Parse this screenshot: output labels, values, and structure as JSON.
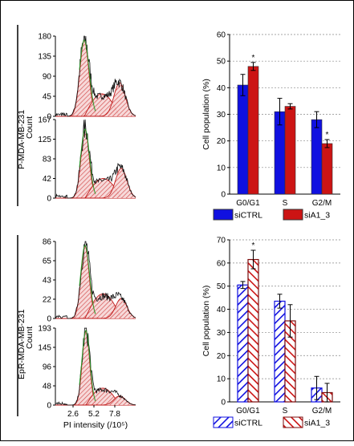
{
  "colors": {
    "siCTRL": "#1010e0",
    "siA1_3": "#cc1414",
    "hist_line": "#111111",
    "fit_fill": "#e8a0a0",
    "fit_line": "#c01818",
    "fit_green": "#2a9a2a"
  },
  "row_labels": [
    "P-MDA-MB-231",
    "EpR-MDA-MB-231"
  ],
  "histograms": {
    "ylabel": "Count",
    "xlabel": "PI intensity (/10⁵)",
    "x_ticks": [
      "2.6",
      "5.2",
      "7.8"
    ],
    "panels": [
      {
        "y_ticks": [
          "180",
          "135",
          "90",
          "45",
          "0"
        ]
      },
      {
        "y_ticks": [
          "167",
          "125",
          "83",
          "42",
          "0"
        ]
      },
      {
        "y_ticks": [
          "86",
          "65",
          "43",
          "22",
          "0"
        ]
      },
      {
        "y_ticks": [
          "193",
          "145",
          "96",
          "48",
          "0"
        ]
      }
    ]
  },
  "chart_data": [
    {
      "type": "bar",
      "categories": [
        "G0/G1",
        "S",
        "G2/M"
      ],
      "series": [
        {
          "name": "siCTRL",
          "values": [
            41,
            31,
            28
          ],
          "errors": [
            4,
            5,
            3
          ]
        },
        {
          "name": "siA1_3",
          "values": [
            48,
            33,
            19
          ],
          "errors": [
            1.5,
            1,
            1.5
          ]
        }
      ],
      "ylabel": "Cell population (%)",
      "ylim": [
        0,
        60
      ],
      "y_ticks": [
        "0",
        "10",
        "20",
        "30",
        "40",
        "50",
        "60"
      ],
      "annotations": [
        "*",
        "*"
      ],
      "grid": true,
      "legend": "bottom",
      "pattern": "solid"
    },
    {
      "type": "bar",
      "categories": [
        "G0/G1",
        "S",
        "G2/M"
      ],
      "series": [
        {
          "name": "siCTRL",
          "values": [
            50.5,
            43.5,
            6
          ],
          "errors": [
            1.5,
            3,
            5
          ]
        },
        {
          "name": "siA1_3",
          "values": [
            61.5,
            35,
            4
          ],
          "errors": [
            4,
            7,
            4
          ]
        }
      ],
      "ylabel": "Cell population (%)",
      "ylim": [
        0,
        70
      ],
      "y_ticks": [
        "0",
        "10",
        "20",
        "30",
        "40",
        "50",
        "60",
        "70"
      ],
      "annotations": [
        "*"
      ],
      "grid": true,
      "legend": "bottom",
      "pattern": "hatched"
    }
  ]
}
